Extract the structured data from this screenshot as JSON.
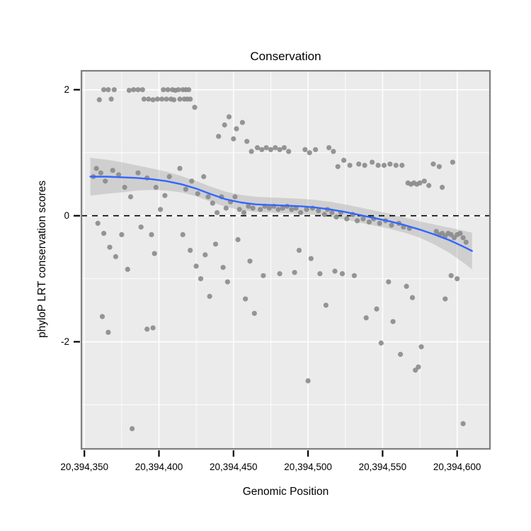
{
  "chart_data": {
    "type": "scatter",
    "title": "Conservation",
    "xlabel": "Genomic Position",
    "ylabel": "phyloP LRT conservation scores",
    "xlim": [
      20394348,
      20394622
    ],
    "ylim": [
      -3.7,
      2.3
    ],
    "grid": "on",
    "legend": "none",
    "colors": {
      "panel_bg": "#ebebeb",
      "grid": "#ffffff",
      "border": "#7f7f7f",
      "point": "#8c8c8c",
      "tick": "#000000"
    },
    "x_ticks": [
      {
        "value": 20394350,
        "label": "20,394,350"
      },
      {
        "value": 20394400,
        "label": "20,394,400"
      },
      {
        "value": 20394450,
        "label": "20,394,450"
      },
      {
        "value": 20394500,
        "label": "20,394,500"
      },
      {
        "value": 20394550,
        "label": "20,394,550"
      },
      {
        "value": 20394600,
        "label": "20,394,600"
      }
    ],
    "y_ticks": [
      {
        "value": 2,
        "label": "2"
      },
      {
        "value": 0,
        "label": "0"
      },
      {
        "value": -2,
        "label": "-2"
      }
    ],
    "x_minor": [
      20394375,
      20394425,
      20394475,
      20394525,
      20394575
    ],
    "y_minor": [
      -3,
      -1,
      1
    ],
    "reference_line": {
      "y": 0,
      "style": "dashed",
      "color": "#000000"
    },
    "points": [
      [
        20394363,
        2.0
      ],
      [
        20394366,
        2.0
      ],
      [
        20394370,
        2.0
      ],
      [
        20394380,
        1.99
      ],
      [
        20394383,
        2.0
      ],
      [
        20394386,
        2.0
      ],
      [
        20394389,
        2.0
      ],
      [
        20394403,
        2.0
      ],
      [
        20394406,
        2.0
      ],
      [
        20394409,
        2.0
      ],
      [
        20394411,
        1.99
      ],
      [
        20394413,
        2.0
      ],
      [
        20394416,
        2.0
      ],
      [
        20394418,
        2.0
      ],
      [
        20394420,
        2.0
      ],
      [
        20394360,
        1.84
      ],
      [
        20394368,
        1.85
      ],
      [
        20394390,
        1.85
      ],
      [
        20394393,
        1.85
      ],
      [
        20394396,
        1.84
      ],
      [
        20394399,
        1.85
      ],
      [
        20394402,
        1.85
      ],
      [
        20394405,
        1.85
      ],
      [
        20394408,
        1.85
      ],
      [
        20394410,
        1.84
      ],
      [
        20394414,
        1.85
      ],
      [
        20394417,
        1.85
      ],
      [
        20394419,
        1.85
      ],
      [
        20394421,
        1.85
      ],
      [
        20394424,
        1.72
      ],
      [
        20394440,
        1.26
      ],
      [
        20394444,
        1.44
      ],
      [
        20394447,
        1.57
      ],
      [
        20394450,
        1.22
      ],
      [
        20394452,
        1.38
      ],
      [
        20394456,
        1.48
      ],
      [
        20394459,
        1.18
      ],
      [
        20394462,
        1.02
      ],
      [
        20394466,
        1.08
      ],
      [
        20394469,
        1.05
      ],
      [
        20394472,
        1.08
      ],
      [
        20394475,
        1.05
      ],
      [
        20394478,
        1.08
      ],
      [
        20394481,
        1.05
      ],
      [
        20394484,
        1.08
      ],
      [
        20394487,
        1.02
      ],
      [
        20394498,
        1.05
      ],
      [
        20394501,
        1.0
      ],
      [
        20394505,
        1.05
      ],
      [
        20394514,
        1.08
      ],
      [
        20394517,
        1.02
      ],
      [
        20394520,
        0.78
      ],
      [
        20394524,
        0.88
      ],
      [
        20394528,
        0.8
      ],
      [
        20394534,
        0.82
      ],
      [
        20394538,
        0.8
      ],
      [
        20394543,
        0.85
      ],
      [
        20394547,
        0.8
      ],
      [
        20394551,
        0.8
      ],
      [
        20394555,
        0.82
      ],
      [
        20394559,
        0.8
      ],
      [
        20394563,
        0.8
      ],
      [
        20394584,
        0.82
      ],
      [
        20394588,
        0.78
      ],
      [
        20394597,
        0.85
      ],
      [
        20394567,
        0.52
      ],
      [
        20394569,
        0.5
      ],
      [
        20394571,
        0.52
      ],
      [
        20394573,
        0.5
      ],
      [
        20394575,
        0.52
      ],
      [
        20394578,
        0.55
      ],
      [
        20394581,
        0.48
      ],
      [
        20394590,
        0.45
      ],
      [
        20394356,
        0.62
      ],
      [
        20394358,
        0.75
      ],
      [
        20394361,
        0.68
      ],
      [
        20394364,
        0.55
      ],
      [
        20394369,
        0.72
      ],
      [
        20394373,
        0.65
      ],
      [
        20394377,
        0.45
      ],
      [
        20394381,
        0.3
      ],
      [
        20394386,
        0.68
      ],
      [
        20394392,
        0.6
      ],
      [
        20394398,
        0.45
      ],
      [
        20394401,
        0.1
      ],
      [
        20394404,
        0.32
      ],
      [
        20394407,
        0.62
      ],
      [
        20394414,
        0.75
      ],
      [
        20394418,
        0.42
      ],
      [
        20394422,
        0.55
      ],
      [
        20394426,
        0.35
      ],
      [
        20394430,
        0.62
      ],
      [
        20394433,
        0.3
      ],
      [
        20394436,
        0.2
      ],
      [
        20394439,
        0.05
      ],
      [
        20394442,
        0.3
      ],
      [
        20394445,
        0.12
      ],
      [
        20394448,
        0.22
      ],
      [
        20394451,
        0.3
      ],
      [
        20394454,
        0.1
      ],
      [
        20394457,
        0.05
      ],
      [
        20394460,
        0.15
      ],
      [
        20394463,
        0.12
      ],
      [
        20394468,
        0.1
      ],
      [
        20394471,
        0.15
      ],
      [
        20394474,
        0.12
      ],
      [
        20394477,
        0.15
      ],
      [
        20394480,
        0.1
      ],
      [
        20394483,
        0.12
      ],
      [
        20394486,
        0.15
      ],
      [
        20394489,
        0.1
      ],
      [
        20394492,
        0.12
      ],
      [
        20394495,
        0.05
      ],
      [
        20394499,
        0.1
      ],
      [
        20394503,
        0.12
      ],
      [
        20394507,
        0.08
      ],
      [
        20394511,
        0.02
      ],
      [
        20394513,
        0.1
      ],
      [
        20394516,
        0.05
      ],
      [
        20394519,
        -0.02
      ],
      [
        20394522,
        0.05
      ],
      [
        20394526,
        -0.05
      ],
      [
        20394530,
        0.02
      ],
      [
        20394533,
        -0.08
      ],
      [
        20394537,
        -0.05
      ],
      [
        20394541,
        -0.1
      ],
      [
        20394544,
        -0.05
      ],
      [
        20394548,
        -0.12
      ],
      [
        20394552,
        -0.08
      ],
      [
        20394556,
        -0.15
      ],
      [
        20394561,
        -0.12
      ],
      [
        20394564,
        -0.18
      ],
      [
        20394568,
        -0.2
      ],
      [
        20394586,
        -0.25
      ],
      [
        20394588,
        -0.3
      ],
      [
        20394590,
        -0.28
      ],
      [
        20394592,
        -0.32
      ],
      [
        20394594,
        -0.28
      ],
      [
        20394596,
        -0.3
      ],
      [
        20394598,
        -0.35
      ],
      [
        20394600,
        -0.3
      ],
      [
        20394602,
        -0.28
      ],
      [
        20394604,
        -0.35
      ],
      [
        20394606,
        -0.42
      ],
      [
        20394359,
        -0.12
      ],
      [
        20394363,
        -0.28
      ],
      [
        20394367,
        -0.5
      ],
      [
        20394371,
        -0.65
      ],
      [
        20394375,
        -0.3
      ],
      [
        20394379,
        -0.85
      ],
      [
        20394388,
        -0.18
      ],
      [
        20394395,
        -0.3
      ],
      [
        20394397,
        -0.6
      ],
      [
        20394416,
        -0.3
      ],
      [
        20394421,
        -0.55
      ],
      [
        20394425,
        -0.8
      ],
      [
        20394428,
        -1.0
      ],
      [
        20394431,
        -0.62
      ],
      [
        20394434,
        -1.28
      ],
      [
        20394438,
        -0.45
      ],
      [
        20394443,
        -0.82
      ],
      [
        20394446,
        -1.05
      ],
      [
        20394453,
        -0.38
      ],
      [
        20394458,
        -1.32
      ],
      [
        20394461,
        -0.72
      ],
      [
        20394464,
        -1.55
      ],
      [
        20394470,
        -0.95
      ],
      [
        20394481,
        -0.92
      ],
      [
        20394491,
        -0.9
      ],
      [
        20394494,
        -0.55
      ],
      [
        20394500,
        -2.62
      ],
      [
        20394502,
        -0.68
      ],
      [
        20394508,
        -0.92
      ],
      [
        20394512,
        -1.42
      ],
      [
        20394518,
        -0.88
      ],
      [
        20394523,
        -0.92
      ],
      [
        20394531,
        -0.95
      ],
      [
        20394539,
        -1.62
      ],
      [
        20394546,
        -1.48
      ],
      [
        20394549,
        -2.02
      ],
      [
        20394554,
        -1.05
      ],
      [
        20394557,
        -1.68
      ],
      [
        20394562,
        -2.2
      ],
      [
        20394566,
        -1.12
      ],
      [
        20394570,
        -1.3
      ],
      [
        20394572,
        -2.45
      ],
      [
        20394574,
        -2.4
      ],
      [
        20394576,
        -2.08
      ],
      [
        20394592,
        -1.32
      ],
      [
        20394596,
        -0.95
      ],
      [
        20394600,
        -1.0
      ],
      [
        20394362,
        -1.6
      ],
      [
        20394366,
        -1.85
      ],
      [
        20394392,
        -1.8
      ],
      [
        20394396,
        -1.78
      ],
      [
        20394382,
        -3.38
      ],
      [
        20394604,
        -3.3
      ]
    ],
    "smooth": {
      "color": "#3366ff",
      "x": [
        20394354,
        20394365,
        20394375,
        20394385,
        20394395,
        20394405,
        20394415,
        20394425,
        20394435,
        20394445,
        20394455,
        20394465,
        20394475,
        20394485,
        20394495,
        20394505,
        20394515,
        20394525,
        20394535,
        20394545,
        20394555,
        20394565,
        20394575,
        20394585,
        20394595,
        20394605,
        20394610
      ],
      "y": [
        0.62,
        0.62,
        0.61,
        0.6,
        0.58,
        0.55,
        0.5,
        0.43,
        0.34,
        0.26,
        0.21,
        0.18,
        0.17,
        0.16,
        0.15,
        0.13,
        0.1,
        0.06,
        0.01,
        -0.04,
        -0.09,
        -0.15,
        -0.22,
        -0.3,
        -0.39,
        -0.5,
        -0.56
      ]
    },
    "ribbon": {
      "color": "#9a9a9a",
      "opacity": 0.35,
      "x": [
        20394354,
        20394365,
        20394375,
        20394385,
        20394395,
        20394405,
        20394415,
        20394425,
        20394435,
        20394445,
        20394455,
        20394465,
        20394475,
        20394485,
        20394495,
        20394505,
        20394515,
        20394525,
        20394535,
        20394545,
        20394555,
        20394565,
        20394575,
        20394585,
        20394595,
        20394605,
        20394610
      ],
      "upper": [
        0.92,
        0.89,
        0.85,
        0.8,
        0.75,
        0.7,
        0.63,
        0.55,
        0.46,
        0.38,
        0.33,
        0.3,
        0.29,
        0.28,
        0.27,
        0.25,
        0.22,
        0.18,
        0.13,
        0.08,
        0.03,
        -0.03,
        -0.09,
        -0.14,
        -0.19,
        -0.24,
        -0.27
      ],
      "lower": [
        0.32,
        0.35,
        0.37,
        0.4,
        0.41,
        0.4,
        0.37,
        0.31,
        0.22,
        0.14,
        0.09,
        0.06,
        0.05,
        0.04,
        0.03,
        0.01,
        -0.02,
        -0.06,
        -0.11,
        -0.16,
        -0.21,
        -0.27,
        -0.35,
        -0.46,
        -0.59,
        -0.76,
        -0.85
      ]
    }
  }
}
